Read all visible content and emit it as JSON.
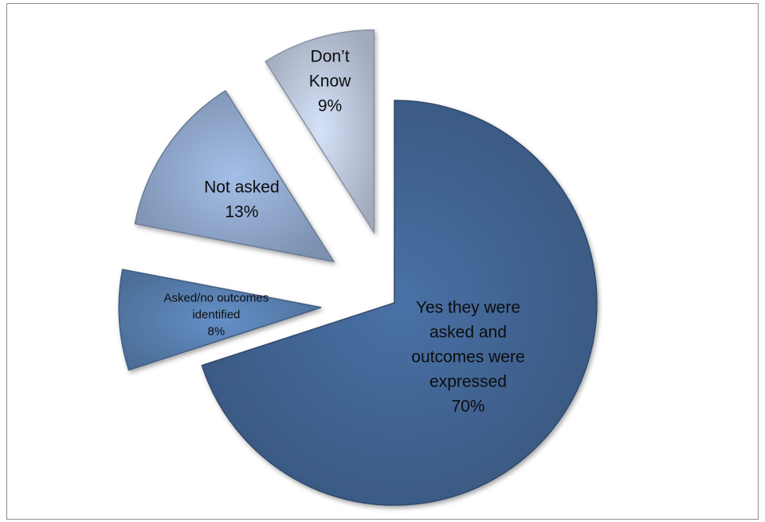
{
  "chart_data": {
    "type": "pie",
    "exploded": true,
    "title": "",
    "slices": [
      {
        "label_lines": [
          "Yes they were",
          "asked and",
          "outcomes were",
          "expressed"
        ],
        "percent_label": "70%",
        "value": 70,
        "color": "#44699a"
      },
      {
        "label_lines": [
          "Asked/no outcomes",
          "identified"
        ],
        "percent_label": "8%",
        "value": 8,
        "color": "#5d85b8"
      },
      {
        "label_lines": [
          "Not asked"
        ],
        "percent_label": "13%",
        "value": 13,
        "color": "#97b0d6"
      },
      {
        "label_lines": [
          "Don’t",
          "Know"
        ],
        "percent_label": "9%",
        "value": 9,
        "color": "#c5d1e6"
      }
    ]
  }
}
